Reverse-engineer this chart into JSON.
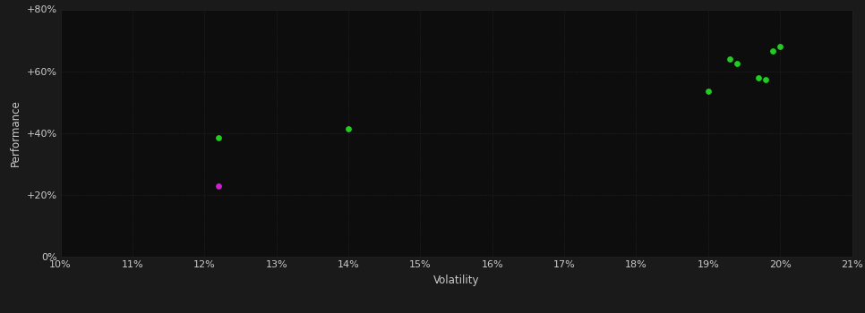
{
  "background_color": "#1a1a1a",
  "plot_bg_color": "#0d0d0d",
  "grid_color": "#2a2a2a",
  "text_color": "#cccccc",
  "xlabel": "Volatility",
  "ylabel": "Performance",
  "xlim": [
    0.1,
    0.21
  ],
  "ylim": [
    0.0,
    0.8
  ],
  "xticks": [
    0.1,
    0.11,
    0.12,
    0.13,
    0.14,
    0.15,
    0.16,
    0.17,
    0.18,
    0.19,
    0.2,
    0.21
  ],
  "yticks": [
    0.0,
    0.2,
    0.4,
    0.6,
    0.8
  ],
  "ytick_labels": [
    "0%",
    "+20%",
    "+40%",
    "+60%",
    "+80%"
  ],
  "xtick_labels": [
    "10%",
    "11%",
    "12%",
    "13%",
    "14%",
    "15%",
    "16%",
    "17%",
    "18%",
    "19%",
    "20%",
    "21%"
  ],
  "green_points": [
    [
      0.122,
      0.385
    ],
    [
      0.14,
      0.415
    ],
    [
      0.19,
      0.535
    ],
    [
      0.193,
      0.638
    ],
    [
      0.194,
      0.625
    ],
    [
      0.197,
      0.58
    ],
    [
      0.198,
      0.573
    ],
    [
      0.199,
      0.665
    ],
    [
      0.2,
      0.68
    ]
  ],
  "magenta_points": [
    [
      0.122,
      0.228
    ]
  ],
  "point_size": 15,
  "font_size_ticks": 8,
  "font_size_label": 8.5
}
